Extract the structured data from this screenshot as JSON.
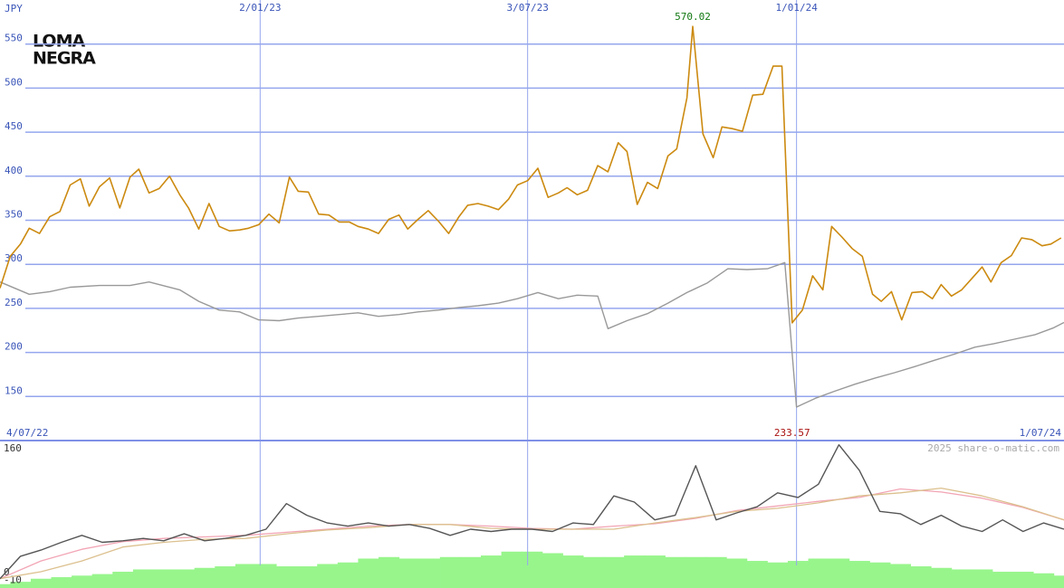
{
  "chart_data": [
    {
      "type": "line",
      "logo": [
        "LOMA",
        "NEGRA"
      ],
      "ylabel": "JPY",
      "xlim": [
        0,
        728
      ],
      "xticks": [
        {
          "value": 0,
          "label": "4/07/22"
        },
        {
          "value": 178,
          "label": "2/01/23"
        },
        {
          "value": 361,
          "label": "3/07/23"
        },
        {
          "value": 545,
          "label": "1/01/24"
        },
        {
          "value": 728,
          "label": "1/07/24"
        }
      ],
      "ylim": [
        100,
        600
      ],
      "yticks": [
        150,
        200,
        250,
        300,
        350,
        400,
        450,
        500,
        550
      ],
      "grid": true,
      "series": [
        {
          "color": "#999999",
          "x": [
            0,
            20,
            34,
            48,
            68,
            89,
            102,
            123,
            136,
            150,
            164,
            177,
            191,
            204,
            218,
            232,
            245,
            259,
            273,
            286,
            300,
            314,
            327,
            341,
            354,
            368,
            382,
            395,
            409,
            416,
            429,
            443,
            457,
            470,
            484,
            498,
            511,
            525,
            537,
            545,
            558,
            571,
            585,
            599,
            612,
            626,
            639,
            653,
            667,
            680,
            694,
            708,
            721,
            728
          ],
          "values": [
            280,
            266,
            269,
            274,
            276,
            276,
            280,
            271,
            258,
            248,
            246,
            237,
            236,
            239,
            241,
            243,
            245,
            241,
            243,
            246,
            248,
            251,
            253,
            256,
            261,
            268,
            261,
            265,
            264,
            227,
            236,
            244,
            256,
            268,
            279,
            295,
            294,
            295,
            302,
            138,
            148,
            156,
            164,
            171,
            177,
            184,
            191,
            198,
            206,
            210,
            215,
            220,
            228,
            234
          ]
        },
        {
          "color": "#cc8a10",
          "x": [
            0,
            7,
            14,
            20,
            27,
            34,
            41,
            48,
            55,
            61,
            68,
            75,
            82,
            89,
            95,
            102,
            109,
            116,
            123,
            129,
            136,
            143,
            150,
            157,
            164,
            170,
            177,
            184,
            191,
            198,
            204,
            211,
            218,
            225,
            232,
            239,
            245,
            252,
            259,
            266,
            273,
            279,
            286,
            293,
            300,
            307,
            314,
            320,
            327,
            334,
            341,
            348,
            354,
            361,
            368,
            375,
            382,
            388,
            395,
            402,
            409,
            416,
            423,
            429,
            436,
            443,
            450,
            457,
            463,
            470,
            474,
            481,
            488,
            494,
            501,
            508,
            515,
            522,
            529,
            535,
            542,
            549,
            556,
            563,
            569,
            576,
            583,
            590,
            597,
            603,
            610,
            617,
            624,
            631,
            638,
            644,
            651,
            658,
            665,
            672,
            678,
            685,
            692,
            699,
            706,
            713,
            719,
            726
          ],
          "values": [
            273,
            309,
            323,
            341,
            335,
            354,
            360,
            390,
            397,
            366,
            388,
            398,
            364,
            399,
            408,
            381,
            386,
            400,
            379,
            364,
            340,
            369,
            343,
            338,
            339,
            341,
            345,
            357,
            347,
            399,
            383,
            382,
            357,
            356,
            348,
            348,
            343,
            340,
            335,
            351,
            356,
            340,
            351,
            361,
            349,
            335,
            354,
            367,
            369,
            366,
            362,
            374,
            390,
            395,
            409,
            376,
            381,
            387,
            379,
            384,
            412,
            405,
            438,
            428,
            368,
            393,
            386,
            423,
            431,
            489,
            570.02,
            448,
            421,
            456,
            454,
            451,
            492,
            493,
            525,
            525,
            233.57,
            248,
            287,
            271,
            343,
            331,
            318,
            309,
            266,
            258,
            269,
            237,
            268,
            269,
            261,
            277,
            264,
            271,
            284,
            297,
            280,
            302,
            310,
            330,
            328,
            321,
            323,
            330
          ]
        }
      ],
      "annotations": [
        {
          "x": 474,
          "value": 570.02,
          "color": "#117711"
        },
        {
          "x": 542,
          "value": 233.57,
          "color": "#aa1111"
        }
      ]
    },
    {
      "type": "combo",
      "watermark": "2025 share-o-matic.com",
      "xlim": [
        0,
        728
      ],
      "ylim": [
        -20,
        167
      ],
      "yticks": [
        160,
        0,
        -10
      ],
      "series": [
        {
          "type": "bar",
          "color": "#98f58c",
          "x": [
            0,
            14,
            28,
            42,
            56,
            70,
            84,
            98,
            112,
            126,
            140,
            154,
            168,
            182,
            196,
            210,
            224,
            238,
            252,
            266,
            280,
            294,
            308,
            322,
            336,
            350,
            364,
            378,
            392,
            406,
            420,
            434,
            448,
            462,
            476,
            490,
            504,
            518,
            532,
            546,
            560,
            574,
            588,
            602,
            616,
            630,
            644,
            658,
            672,
            686,
            700,
            714,
            728
          ],
          "values": [
            -15,
            -12,
            -8,
            -6,
            -4,
            -2,
            1,
            4,
            4,
            4,
            6,
            8,
            11,
            11,
            8,
            8,
            11,
            13,
            18,
            20,
            18,
            18,
            20,
            20,
            22,
            27,
            27,
            25,
            22,
            20,
            20,
            22,
            22,
            20,
            20,
            20,
            18,
            15,
            13,
            15,
            18,
            18,
            15,
            13,
            11,
            8,
            6,
            4,
            4,
            1,
            1,
            -1,
            -4
          ]
        },
        {
          "type": "line",
          "color": "#f2a5b5",
          "x": [
            0,
            28,
            56,
            84,
            112,
            140,
            168,
            196,
            224,
            252,
            280,
            308,
            336,
            364,
            392,
            420,
            448,
            476,
            504,
            532,
            560,
            588,
            616,
            644,
            672,
            700,
            728
          ],
          "values": [
            -8,
            15,
            30,
            40,
            44,
            46,
            48,
            52,
            56,
            60,
            62,
            62,
            60,
            57,
            56,
            60,
            63,
            70,
            80,
            86,
            92,
            97,
            108,
            104,
            96,
            84,
            68
          ]
        },
        {
          "type": "line",
          "color": "#dcc08e",
          "x": [
            0,
            28,
            56,
            84,
            112,
            140,
            168,
            196,
            224,
            252,
            280,
            308,
            336,
            364,
            392,
            420,
            448,
            476,
            504,
            532,
            560,
            588,
            616,
            644,
            672,
            700,
            728
          ],
          "values": [
            -8,
            1,
            15,
            33,
            39,
            43,
            44,
            50,
            55,
            58,
            62,
            62,
            57,
            56,
            56,
            56,
            64,
            71,
            79,
            83,
            90,
            99,
            103,
            109,
            99,
            85,
            68
          ]
        },
        {
          "type": "line",
          "color": "#555555",
          "x": [
            0,
            14,
            28,
            42,
            56,
            70,
            84,
            98,
            112,
            126,
            140,
            154,
            168,
            182,
            196,
            210,
            224,
            238,
            252,
            266,
            280,
            294,
            308,
            322,
            336,
            350,
            364,
            378,
            392,
            406,
            420,
            434,
            448,
            462,
            476,
            490,
            504,
            518,
            532,
            546,
            560,
            574,
            588,
            602,
            616,
            630,
            644,
            658,
            672,
            686,
            700,
            714,
            728
          ],
          "values": [
            -8,
            21,
            29,
            39,
            48,
            39,
            41,
            44,
            41,
            50,
            41,
            44,
            48,
            56,
            89,
            74,
            64,
            60,
            64,
            60,
            62,
            57,
            48,
            56,
            53,
            56,
            56,
            53,
            64,
            62,
            99,
            91,
            68,
            74,
            138,
            68,
            77,
            85,
            103,
            97,
            114,
            165,
            132,
            79,
            76,
            62,
            74,
            60,
            53,
            68,
            53,
            64,
            56
          ]
        }
      ]
    }
  ]
}
